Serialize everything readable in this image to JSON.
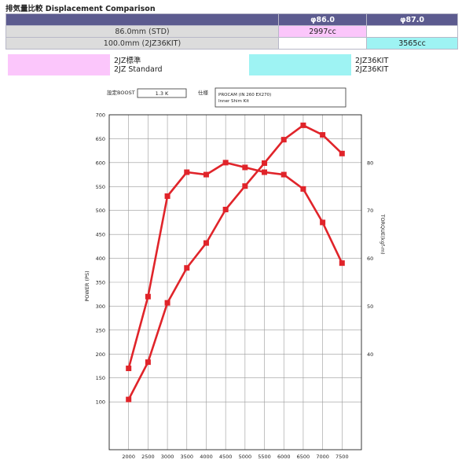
{
  "header": {
    "title": "排気量比較 Displacement Comparison"
  },
  "table": {
    "col1": "φ86.0",
    "col2": "φ87.0",
    "rows": [
      {
        "label": "86.0mm (STD)",
        "v1": "2997cc",
        "v2": ""
      },
      {
        "label": "100.0mm (2JZ36KIT)",
        "v1": "",
        "v2": "3565cc"
      }
    ]
  },
  "legend": {
    "left_line1": "2JZ標準",
    "left_line2": "2JZ Standard",
    "right_line1": "2JZ36KIT",
    "right_line2": "2JZ36KIT",
    "left_color": "#fbc6fb",
    "right_color": "#9ef3f3"
  },
  "spec": {
    "boost_label": "設定BOOST",
    "boost_value": "1.3 K",
    "spec_label": "仕様",
    "spec_line1": "PROCAM (IN 260 EX270)",
    "spec_line2": "Inner Shim Kit"
  },
  "chart_data": {
    "type": "line",
    "x": [
      2000,
      2500,
      3000,
      3500,
      4000,
      4500,
      5000,
      5500,
      6000,
      6500,
      7000,
      7500
    ],
    "xticks": [
      "2000",
      "2500",
      "3000",
      "3500",
      "4000",
      "4500",
      "5000",
      "5500",
      "6000",
      "6500",
      "7000",
      "7500"
    ],
    "ylabel": "POWER (PS)",
    "ylim": [
      0,
      700
    ],
    "yticks": [
      "100",
      "150",
      "200",
      "250",
      "300",
      "350",
      "400",
      "450",
      "500",
      "550",
      "600",
      "650",
      "700"
    ],
    "y2label": "TORQUE(kgf-m)",
    "y2ticks": [
      "40",
      "50",
      "60",
      "70",
      "80"
    ],
    "grid": true,
    "color": "#e0242a",
    "series": [
      {
        "axis": "left",
        "values": [
          105,
          183,
          307,
          380,
          432,
          502,
          551,
          599,
          648,
          678,
          658,
          619
        ]
      },
      {
        "axis": "right",
        "values": [
          37,
          52,
          73,
          78,
          77.5,
          80,
          79,
          78,
          77.5,
          74.5,
          67.5,
          59
        ]
      }
    ]
  }
}
